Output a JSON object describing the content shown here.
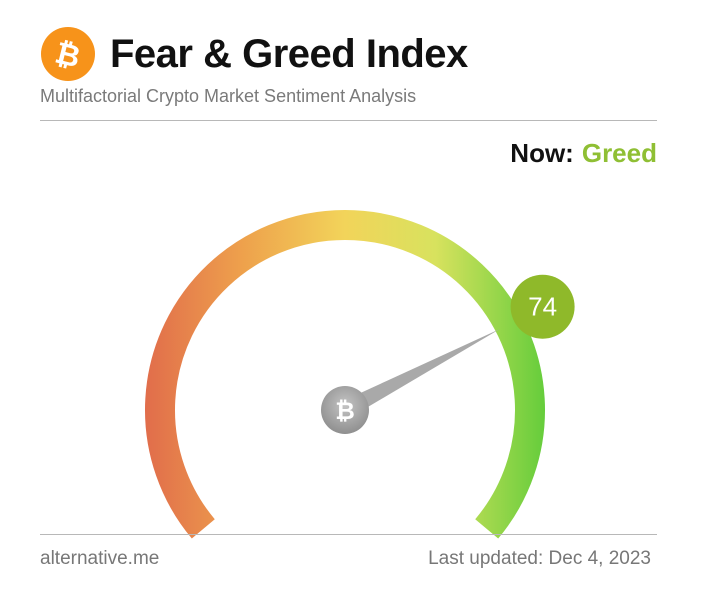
{
  "header": {
    "logo_icon": "bitcoin-icon",
    "title": "Fear & Greed Index",
    "subtitle": "Multifactorial Crypto Market Sentiment Analysis"
  },
  "now": {
    "label": "Now:",
    "value": "Greed",
    "value_color": "#8fbf34"
  },
  "gauge": {
    "score": "74",
    "score_value": 74,
    "min": 0,
    "max": 100,
    "badge_color": "#8fb92a",
    "center_icon": "bitcoin-icon",
    "gradient": [
      "#e06a4b",
      "#eea14c",
      "#f2d45a",
      "#d8e25e",
      "#60cc3a"
    ]
  },
  "footer": {
    "source": "alternative.me",
    "updated": "Last updated: Dec 4, 2023"
  }
}
